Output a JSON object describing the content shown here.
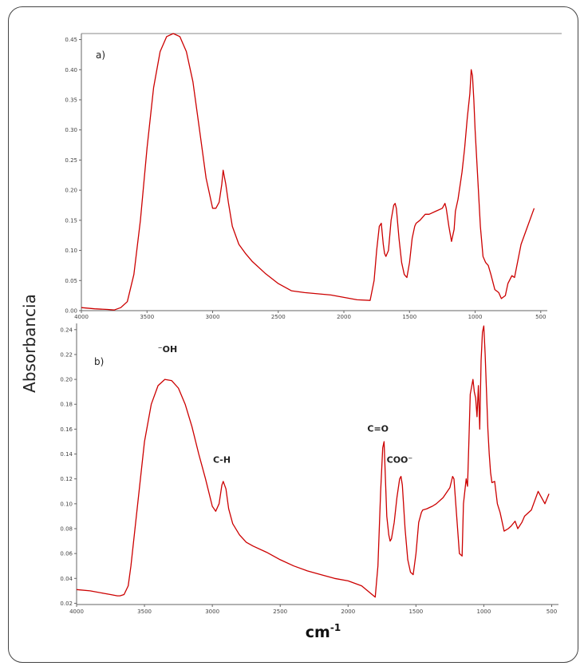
{
  "chart_data": [
    {
      "type": "line",
      "panel_label": "a)",
      "xlabel": "cm-1",
      "ylabel": "Absorbancia",
      "xlim": [
        4000,
        450
      ],
      "x_reversed": true,
      "ylim": [
        0,
        0.46
      ],
      "xticks": [
        4000,
        3500,
        3000,
        2500,
        2000,
        1500,
        1000,
        500
      ],
      "yticks": [
        0.0,
        0.05,
        0.1,
        0.15,
        0.2,
        0.25,
        0.3,
        0.35,
        0.4,
        0.45
      ],
      "ytick_labels": [
        "0.00",
        "0.05",
        "0.10",
        "0.15",
        "0.20",
        "0.25",
        "0.30",
        "0.35",
        "0.40",
        "0.45"
      ],
      "series": [
        {
          "color": "#cc0000",
          "x": [
            4000,
            3900,
            3800,
            3750,
            3700,
            3650,
            3600,
            3550,
            3500,
            3450,
            3400,
            3350,
            3300,
            3250,
            3200,
            3150,
            3100,
            3050,
            3000,
            2975,
            2950,
            2930,
            2920,
            2900,
            2880,
            2850,
            2800,
            2750,
            2700,
            2600,
            2500,
            2400,
            2300,
            2200,
            2150,
            2100,
            2000,
            1900,
            1800,
            1770,
            1750,
            1730,
            1715,
            1700,
            1690,
            1680,
            1660,
            1640,
            1620,
            1610,
            1600,
            1580,
            1560,
            1540,
            1520,
            1500,
            1480,
            1460,
            1450,
            1420,
            1400,
            1380,
            1350,
            1300,
            1250,
            1230,
            1220,
            1200,
            1180,
            1160,
            1150,
            1130,
            1100,
            1080,
            1060,
            1050,
            1040,
            1030,
            1020,
            1010,
            1000,
            980,
            960,
            940,
            920,
            900,
            880,
            850,
            820,
            800,
            770,
            750,
            720,
            700,
            650,
            600,
            550
          ],
          "y": [
            0.005,
            0.003,
            0.002,
            0.001,
            0.005,
            0.015,
            0.06,
            0.15,
            0.27,
            0.37,
            0.43,
            0.455,
            0.46,
            0.455,
            0.43,
            0.38,
            0.3,
            0.22,
            0.17,
            0.17,
            0.18,
            0.21,
            0.233,
            0.21,
            0.18,
            0.14,
            0.11,
            0.095,
            0.082,
            0.062,
            0.045,
            0.033,
            0.03,
            0.028,
            0.027,
            0.026,
            0.022,
            0.018,
            0.017,
            0.05,
            0.1,
            0.14,
            0.145,
            0.11,
            0.095,
            0.09,
            0.1,
            0.15,
            0.175,
            0.178,
            0.17,
            0.12,
            0.08,
            0.06,
            0.055,
            0.08,
            0.12,
            0.14,
            0.145,
            0.15,
            0.155,
            0.16,
            0.16,
            0.165,
            0.17,
            0.178,
            0.17,
            0.14,
            0.115,
            0.135,
            0.165,
            0.185,
            0.23,
            0.27,
            0.32,
            0.34,
            0.36,
            0.4,
            0.39,
            0.35,
            0.3,
            0.22,
            0.14,
            0.09,
            0.08,
            0.075,
            0.06,
            0.035,
            0.03,
            0.02,
            0.025,
            0.045,
            0.058,
            0.055,
            0.11,
            0.14,
            0.17
          ]
        }
      ]
    },
    {
      "type": "line",
      "panel_label": "b)",
      "xlabel": "cm-1",
      "ylabel": "Absorbancia",
      "xlim": [
        4000,
        450
      ],
      "x_reversed": true,
      "ylim": [
        0.019,
        0.245
      ],
      "xticks": [
        4000,
        3500,
        3000,
        2500,
        2000,
        1500,
        1000,
        500
      ],
      "yticks": [
        0.02,
        0.04,
        0.06,
        0.08,
        0.1,
        0.12,
        0.14,
        0.16,
        0.18,
        0.2,
        0.22,
        0.24
      ],
      "ytick_labels": [
        "0.02",
        "0.04",
        "0.06",
        "0.08",
        "0.10",
        "0.12",
        "0.14",
        "0.16",
        "0.18",
        "0.20",
        "0.22",
        "0.24"
      ],
      "annotations": [
        {
          "text": "⁻OH",
          "x": 3330,
          "y": 0.222
        },
        {
          "text": "C-H",
          "x": 2930,
          "y": 0.133
        },
        {
          "text": "C=O",
          "x": 1780,
          "y": 0.158
        },
        {
          "text": "COO⁻",
          "x": 1620,
          "y": 0.133
        }
      ],
      "series": [
        {
          "color": "#cc0000",
          "x": [
            4000,
            3900,
            3800,
            3750,
            3700,
            3680,
            3650,
            3620,
            3600,
            3550,
            3500,
            3450,
            3400,
            3350,
            3300,
            3250,
            3200,
            3150,
            3100,
            3050,
            3000,
            2975,
            2950,
            2930,
            2920,
            2900,
            2880,
            2850,
            2800,
            2750,
            2700,
            2600,
            2500,
            2400,
            2300,
            2200,
            2100,
            2000,
            1900,
            1800,
            1780,
            1760,
            1745,
            1735,
            1725,
            1715,
            1700,
            1690,
            1680,
            1660,
            1640,
            1620,
            1610,
            1600,
            1580,
            1560,
            1540,
            1520,
            1500,
            1480,
            1460,
            1450,
            1420,
            1400,
            1380,
            1350,
            1300,
            1250,
            1230,
            1220,
            1200,
            1180,
            1160,
            1150,
            1130,
            1120,
            1110,
            1100,
            1080,
            1070,
            1060,
            1050,
            1040,
            1030,
            1020,
            1010,
            1000,
            990,
            980,
            970,
            960,
            950,
            940,
            920,
            900,
            880,
            850,
            820,
            800,
            770,
            750,
            720,
            700,
            650,
            600,
            550,
            520
          ],
          "y": [
            0.031,
            0.03,
            0.028,
            0.027,
            0.026,
            0.026,
            0.027,
            0.034,
            0.05,
            0.1,
            0.15,
            0.18,
            0.195,
            0.2,
            0.199,
            0.193,
            0.18,
            0.162,
            0.14,
            0.12,
            0.098,
            0.094,
            0.1,
            0.115,
            0.118,
            0.112,
            0.096,
            0.084,
            0.075,
            0.069,
            0.066,
            0.061,
            0.055,
            0.05,
            0.046,
            0.043,
            0.04,
            0.038,
            0.034,
            0.025,
            0.05,
            0.11,
            0.145,
            0.15,
            0.12,
            0.09,
            0.075,
            0.07,
            0.072,
            0.085,
            0.105,
            0.12,
            0.122,
            0.115,
            0.08,
            0.055,
            0.045,
            0.043,
            0.06,
            0.085,
            0.093,
            0.095,
            0.096,
            0.097,
            0.098,
            0.1,
            0.105,
            0.113,
            0.122,
            0.12,
            0.09,
            0.06,
            0.058,
            0.1,
            0.12,
            0.114,
            0.15,
            0.188,
            0.2,
            0.19,
            0.185,
            0.17,
            0.195,
            0.16,
            0.215,
            0.238,
            0.243,
            0.22,
            0.19,
            0.16,
            0.14,
            0.125,
            0.117,
            0.118,
            0.1,
            0.093,
            0.078,
            0.08,
            0.082,
            0.086,
            0.08,
            0.085,
            0.09,
            0.095,
            0.11,
            0.1,
            0.108
          ]
        }
      ]
    }
  ]
}
